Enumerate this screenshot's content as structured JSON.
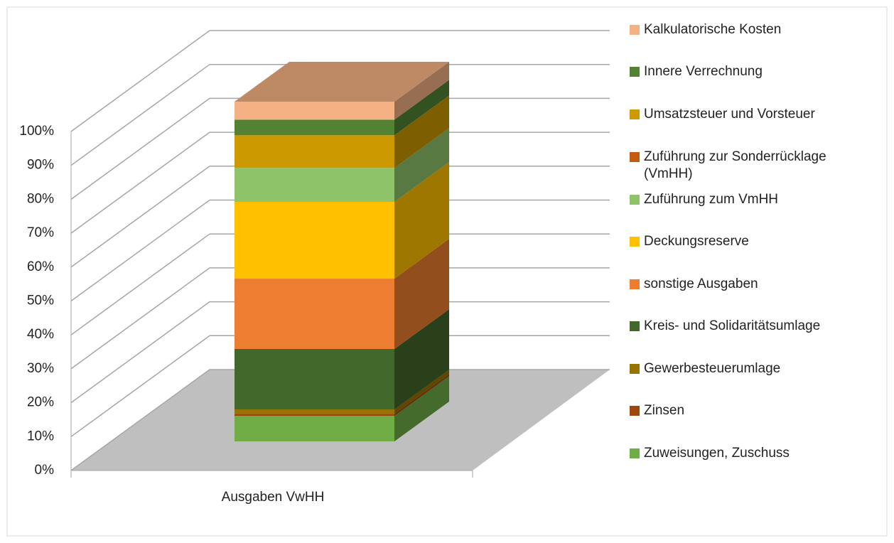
{
  "chart_data": {
    "type": "bar3d_stacked",
    "categories": [
      "Ausgaben VwHH"
    ],
    "series": [
      {
        "name": "Kalkulatorische Kosten",
        "color": "#F4B183",
        "values": [
          5.3
        ]
      },
      {
        "name": "Innere Verrechnung",
        "color": "#548235",
        "values": [
          4.6
        ]
      },
      {
        "name": "Umsatzsteuer und Vorsteuer",
        "color": "#CC9900",
        "values": [
          9.6
        ]
      },
      {
        "name": "Zuführung zur Sonderrücklage (VmHH)",
        "color": "#C55A11",
        "values": [
          0
        ]
      },
      {
        "name": "Zuführung zum VmHH",
        "color": "#8FC36A",
        "values": [
          10
        ]
      },
      {
        "name": "Deckungsreserve",
        "color": "#FFC000",
        "values": [
          22.6
        ]
      },
      {
        "name": "sonstige Ausgaben",
        "color": "#ED7D31",
        "values": [
          20.7
        ]
      },
      {
        "name": "Kreis- und Solidaritätsumlage",
        "color": "#43682B",
        "values": [
          17.8
        ]
      },
      {
        "name": "Gewerbesteuerumlage",
        "color": "#997300",
        "values": [
          1.3
        ]
      },
      {
        "name": "Zinsen",
        "color": "#9E480E",
        "values": [
          0.6
        ]
      },
      {
        "name": "Zuweisungen, Zuschuss",
        "color": "#70AD47",
        "values": [
          7.5
        ]
      }
    ],
    "ylim": [
      0,
      100
    ],
    "yticks": [
      {
        "value": 0,
        "label": "0%"
      },
      {
        "value": 10,
        "label": "10%"
      },
      {
        "value": 20,
        "label": "20%"
      },
      {
        "value": 30,
        "label": "30%"
      },
      {
        "value": 40,
        "label": "40%"
      },
      {
        "value": 50,
        "label": "50%"
      },
      {
        "value": 60,
        "label": "60%"
      },
      {
        "value": 70,
        "label": "70%"
      },
      {
        "value": 80,
        "label": "80%"
      },
      {
        "value": 90,
        "label": "90%"
      },
      {
        "value": 100,
        "label": "100%"
      }
    ],
    "grid": true,
    "legend": "right"
  }
}
